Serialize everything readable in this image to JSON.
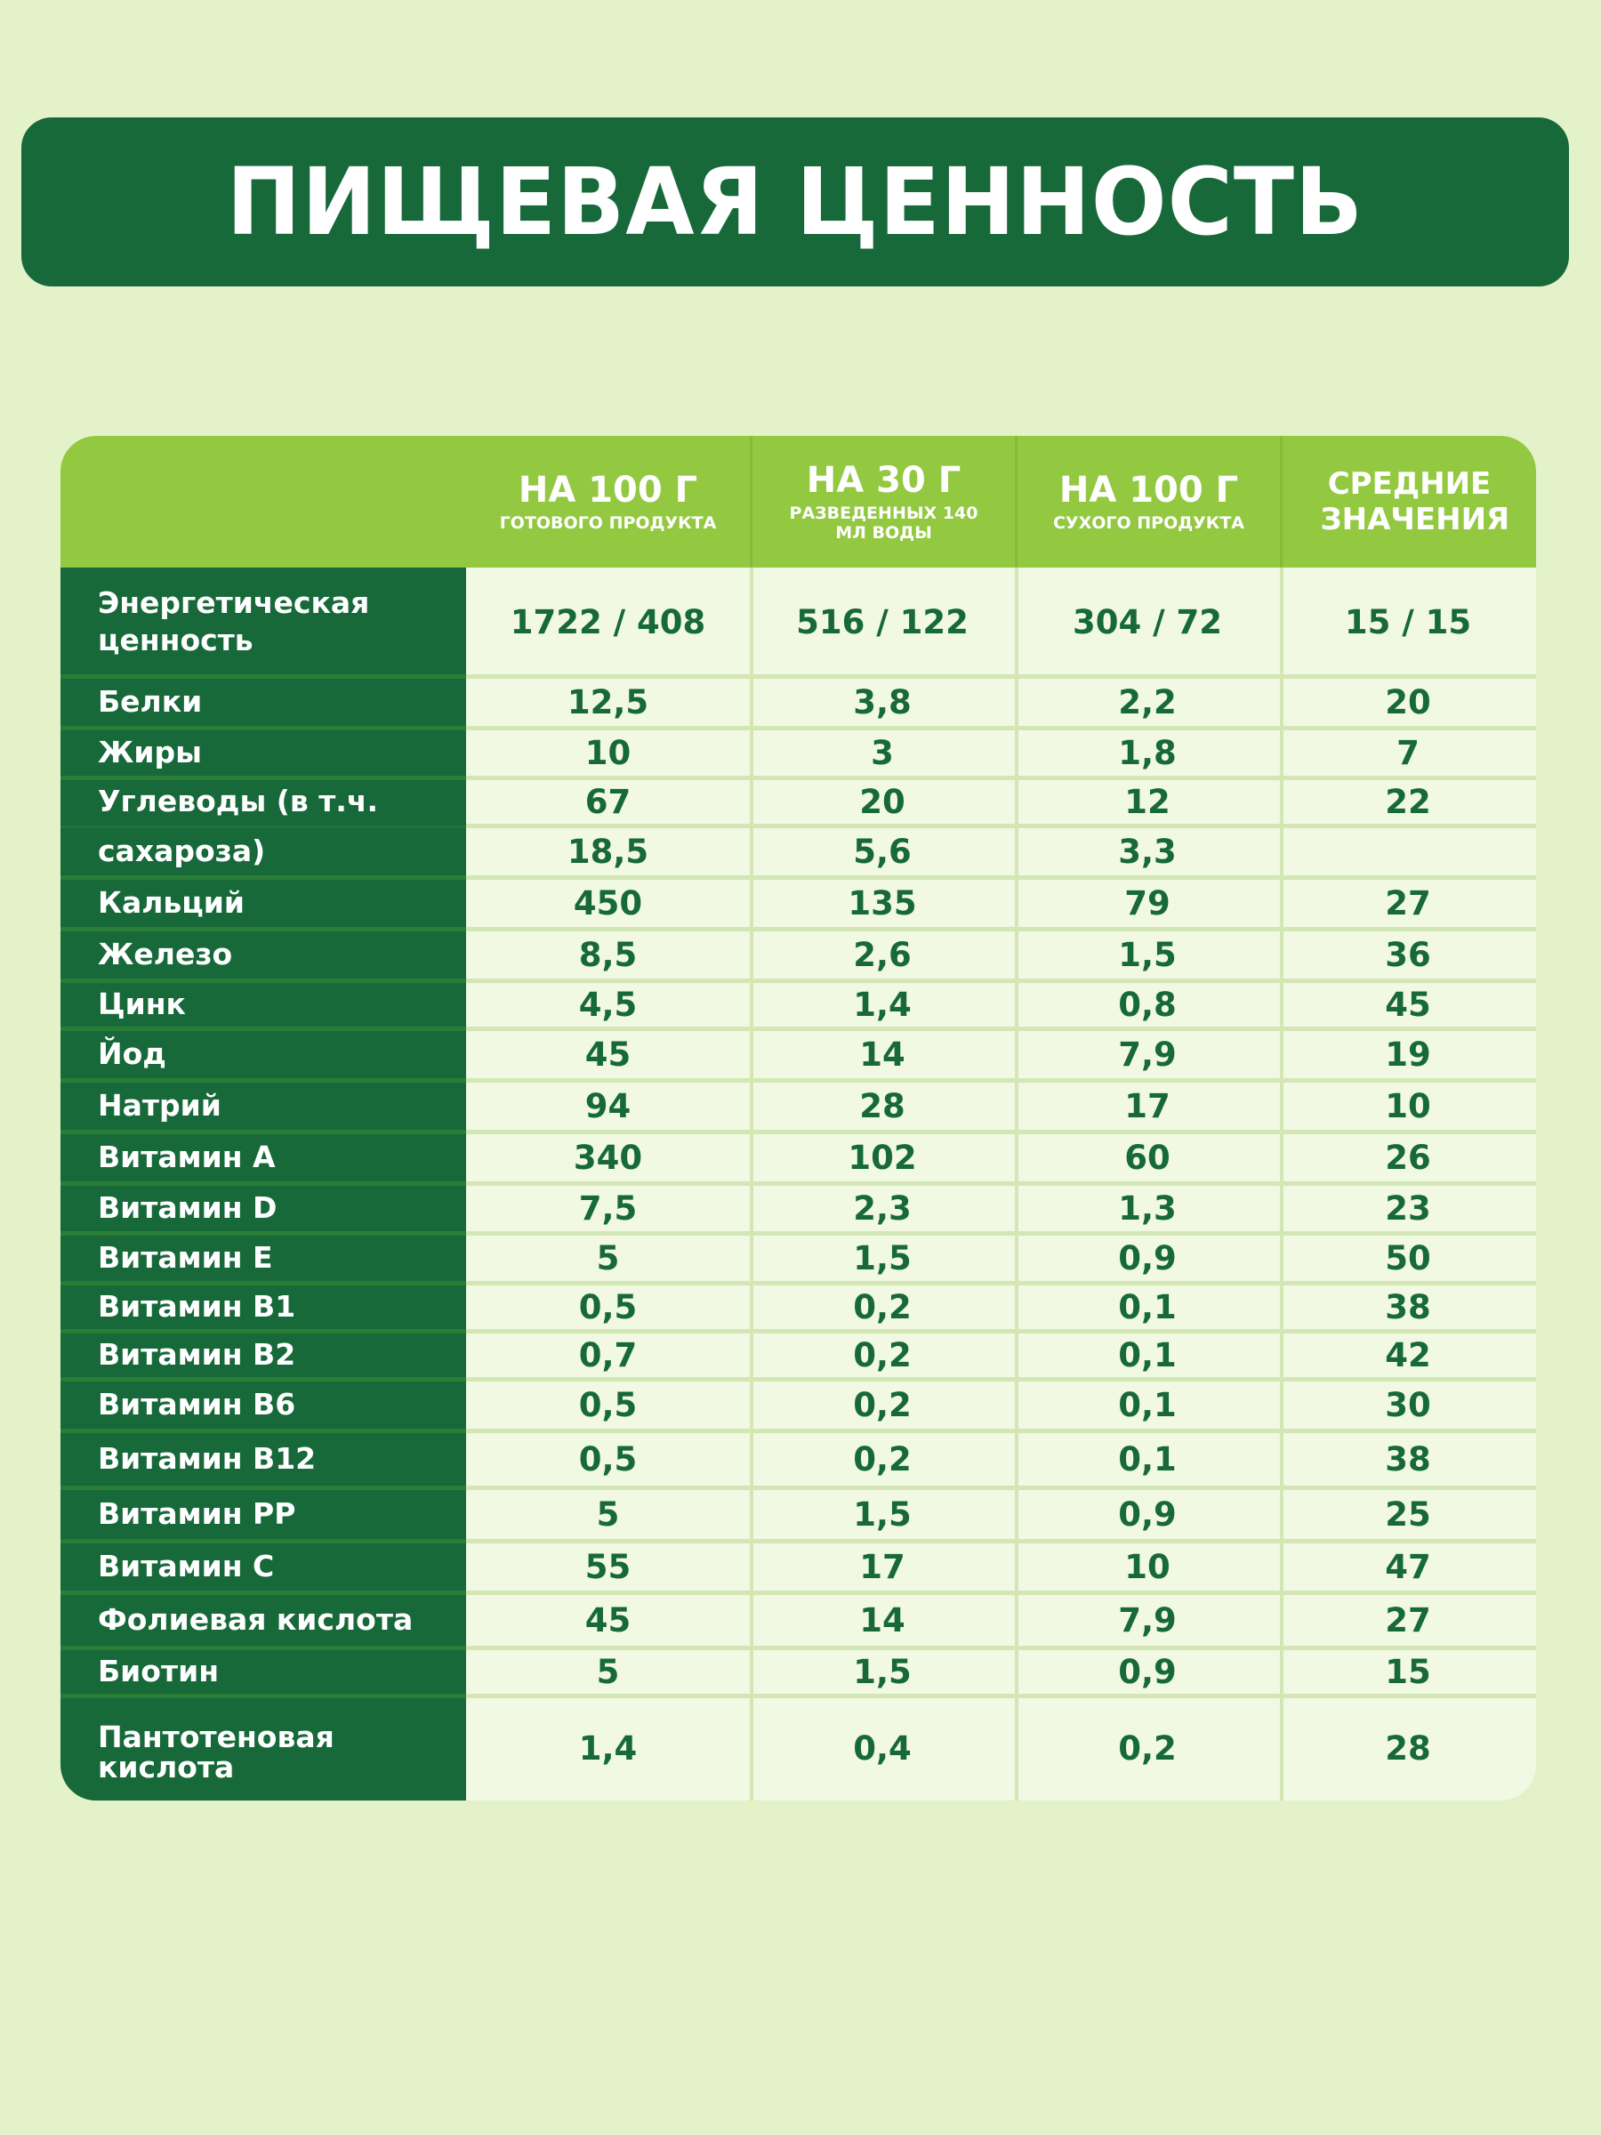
{
  "title": "ПИЩЕВАЯ ЦЕННОСТЬ",
  "colors": {
    "background": "#e3f2c9",
    "title_bar": "#17693a",
    "header_bg": "#93c841",
    "label_col_bg": "#17693a",
    "cell_bg": "#f1f8e3",
    "value_text": "#17693a"
  },
  "table": {
    "columns": [
      {
        "main": "НА 100 Г",
        "sub": "ГОТОВОГО ПРОДУКТА"
      },
      {
        "main": "НА 30 Г",
        "sub": "РАЗВЕДЕННЫХ 140 МЛ ВОДЫ"
      },
      {
        "main": "НА 100 Г",
        "sub": "СУХОГО ПРОДУКТА"
      },
      {
        "main": "СРЕДНИЕ ЗНАЧЕНИЯ",
        "sub": ""
      }
    ],
    "rows": [
      {
        "label": "Энергетическая ценность",
        "values": [
          "1722 / 408",
          "516 / 122",
          "304 / 72",
          "15 / 15"
        ]
      },
      {
        "label": "Белки",
        "values": [
          "12,5",
          "3,8",
          "2,2",
          "20"
        ]
      },
      {
        "label": "Жиры",
        "values": [
          "10",
          "3",
          "1,8",
          "7"
        ]
      },
      {
        "label": "Углеводы (в т.ч.",
        "values": [
          "67",
          "20",
          "12",
          "22"
        ]
      },
      {
        "label": "сахароза)",
        "values": [
          "18,5",
          "5,6",
          "3,3",
          ""
        ]
      },
      {
        "label": "Кальций",
        "values": [
          "450",
          "135",
          "79",
          "27"
        ]
      },
      {
        "label": "Железо",
        "values": [
          "8,5",
          "2,6",
          "1,5",
          "36"
        ]
      },
      {
        "label": "Цинк",
        "values": [
          "4,5",
          "1,4",
          "0,8",
          "45"
        ]
      },
      {
        "label": "Йод",
        "values": [
          "45",
          "14",
          "7,9",
          "19"
        ]
      },
      {
        "label": "Натрий",
        "values": [
          "94",
          "28",
          "17",
          "10"
        ]
      },
      {
        "label": "Витамин A",
        "values": [
          "340",
          "102",
          "60",
          "26"
        ]
      },
      {
        "label": "Витамин D",
        "values": [
          "7,5",
          "2,3",
          "1,3",
          "23"
        ]
      },
      {
        "label": "Витамин E",
        "values": [
          "5",
          "1,5",
          "0,9",
          "50"
        ]
      },
      {
        "label": "Витамин B1",
        "values": [
          "0,5",
          "0,2",
          "0,1",
          "38"
        ]
      },
      {
        "label": "Витамин B2",
        "values": [
          "0,7",
          "0,2",
          "0,1",
          "42"
        ]
      },
      {
        "label": "Витамин B6",
        "values": [
          "0,5",
          "0,2",
          "0,1",
          "30"
        ]
      },
      {
        "label": "Витамин B12",
        "values": [
          "0,5",
          "0,2",
          "0,1",
          "38"
        ]
      },
      {
        "label": "Витамин PP",
        "values": [
          "5",
          "1,5",
          "0,9",
          "25"
        ]
      },
      {
        "label": "Витамин C",
        "values": [
          "55",
          "17",
          "10",
          "47"
        ]
      },
      {
        "label": "Фолиевая кислота",
        "values": [
          "45",
          "14",
          "7,9",
          "27"
        ]
      },
      {
        "label": "Биотин",
        "values": [
          "5",
          "1,5",
          "0,9",
          "15"
        ]
      },
      {
        "label": "Пантотеновая кислота",
        "values": [
          "1,4",
          "0,4",
          "0,2",
          "28"
        ]
      }
    ]
  }
}
